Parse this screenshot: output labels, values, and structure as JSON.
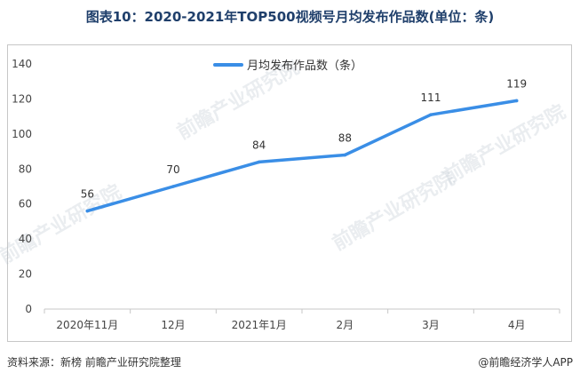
{
  "title": "图表10：2020-2021年TOP500视频号月均发布作品数(单位：条)",
  "footer": {
    "source": "资料来源：新榜 前瞻产业研究院整理",
    "brand": "@前瞻经济学人APP"
  },
  "watermark_text": "前瞻产业研究院",
  "colors": {
    "line": "#3a8ee6",
    "title": "#1f3f6b",
    "axis": "#c7c7c7"
  },
  "chart_data": {
    "type": "line",
    "title": "图表10：2020-2021年TOP500视频号月均发布作品数(单位：条)",
    "xlabel": "",
    "ylabel": "",
    "categories": [
      "2020年11月",
      "12月",
      "2021年1月",
      "2月",
      "3月",
      "4月"
    ],
    "series": [
      {
        "name": "月均发布作品数（条）",
        "values": [
          56,
          70,
          84,
          88,
          111,
          119
        ]
      }
    ],
    "ylim": [
      0,
      140
    ],
    "yticks": [
      0,
      20,
      40,
      60,
      80,
      100,
      120,
      140
    ],
    "legend": "top-center",
    "grid": false
  }
}
